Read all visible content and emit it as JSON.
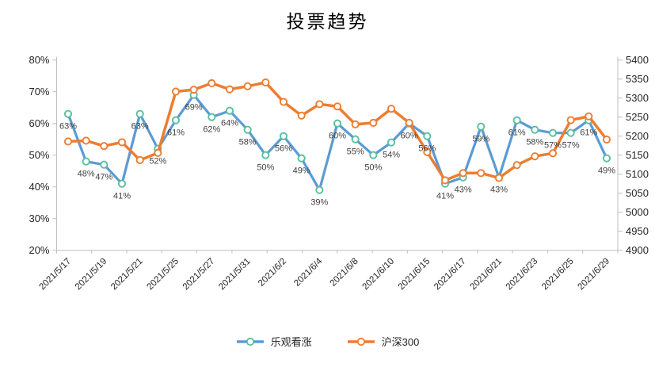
{
  "chart_data": {
    "type": "line",
    "title": "投票趋势",
    "x": [
      "2021/5/17",
      "2021/5/18",
      "2021/5/19",
      "2021/5/20",
      "2021/5/21",
      "2021/5/24",
      "2021/5/25",
      "2021/5/26",
      "2021/5/27",
      "2021/5/28",
      "2021/5/31",
      "2021/6/1",
      "2021/6/2",
      "2021/6/3",
      "2021/6/4",
      "2021/6/7",
      "2021/6/8",
      "2021/6/9",
      "2021/6/10",
      "2021/6/11",
      "2021/6/15",
      "2021/6/16",
      "2021/6/17",
      "2021/6/18",
      "2021/6/21",
      "2021/6/22",
      "2021/6/23",
      "2021/6/24",
      "2021/6/25",
      "2021/6/28",
      "2021/6/29"
    ],
    "x_tick_labels": [
      "2021/5/17",
      "2021/5/19",
      "2021/5/21",
      "2021/5/25",
      "2021/5/27",
      "2021/5/31",
      "2021/6/2",
      "2021/6/4",
      "2021/6/8",
      "2021/6/10",
      "2021/6/15",
      "2021/6/17",
      "2021/6/21",
      "2021/6/23",
      "2021/6/25",
      "2021/6/29"
    ],
    "x_label_interval": 2,
    "series": [
      {
        "name": "乐观看涨",
        "axis": "left",
        "color": "#5B9BD5",
        "marker_color": "#5ABEA0",
        "values": [
          63,
          48,
          47,
          41,
          63,
          52,
          61,
          69,
          62,
          64,
          58,
          50,
          56,
          49,
          39,
          60,
          55,
          50,
          54,
          60,
          56,
          41,
          43,
          59,
          43,
          61,
          58,
          57,
          57,
          61,
          49
        ],
        "data_labels": [
          "63%",
          "48%",
          "47%",
          "41%",
          "63%",
          "52%",
          "61%",
          "69%",
          "62%",
          "64%",
          "58%",
          "50%",
          "56%",
          "49%",
          "39%",
          "60%",
          "55%",
          "50%",
          "54%",
          "60%",
          "56%",
          "41%",
          "43%",
          "59%",
          "43%",
          "61%",
          "58%",
          "57%",
          "57%",
          "61%",
          "49%"
        ]
      },
      {
        "name": "沪深300",
        "axis": "right",
        "color": "#ED7D31",
        "marker_color": "#ED7D31",
        "values": [
          5186,
          5188,
          5174,
          5184,
          5137,
          5156,
          5317,
          5322,
          5339,
          5323,
          5331,
          5341,
          5290,
          5254,
          5284,
          5278,
          5231,
          5235,
          5272,
          5235,
          5158,
          5084,
          5103,
          5103,
          5090,
          5124,
          5147,
          5155,
          5242,
          5252,
          5191
        ],
        "data_labels": []
      }
    ],
    "left_axis": {
      "min": 20,
      "max": 80,
      "step": 10,
      "format": "percent",
      "tick_labels": [
        "20%",
        "30%",
        "40%",
        "50%",
        "60%",
        "70%",
        "80%"
      ]
    },
    "right_axis": {
      "min": 4900,
      "max": 5400,
      "step": 50,
      "tick_labels": [
        "4900",
        "4950",
        "5000",
        "5050",
        "5100",
        "5150",
        "5200",
        "5250",
        "5300",
        "5350",
        "5400"
      ]
    },
    "grid": "off",
    "legend_position": "bottom",
    "axis_color": "#BFBFBF",
    "tick_text_color": "#262626",
    "data_label_color": "#3F3F3F"
  }
}
